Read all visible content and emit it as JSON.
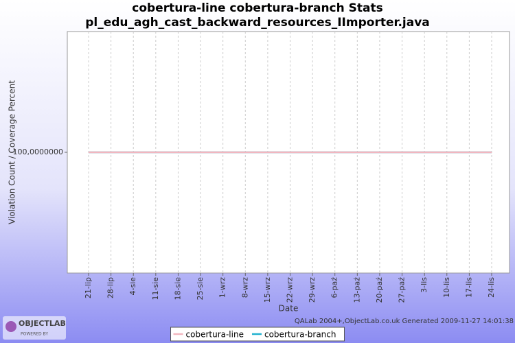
{
  "chart_data": {
    "type": "line",
    "title": [
      "cobertura-line cobertura-branch  Stats",
      "pl_edu_agh_cast_backward_resources_IImporter.java"
    ],
    "x_label": "Date",
    "y_label": "Violation Count / Coverage Percent",
    "categories": [
      "21-lip",
      "28-lip",
      "4-sie",
      "11-sie",
      "18-sie",
      "25-sie",
      "1-wrz",
      "8-wrz",
      "15-wrz",
      "22-wrz",
      "29-wrz",
      "6-paź",
      "13-paź",
      "20-paź",
      "27-paź",
      "3-lis",
      "10-lis",
      "17-lis",
      "24-lis"
    ],
    "series": [
      {
        "name": "cobertura-line",
        "color": "#f2b6bf",
        "values": [
          100,
          100,
          100,
          100,
          100,
          100,
          100,
          100,
          100,
          100,
          100,
          100,
          100,
          100,
          100,
          100,
          100,
          100,
          100
        ]
      },
      {
        "name": "cobertura-branch",
        "color": "#22b2cf",
        "values": [
          100,
          100,
          100,
          100,
          100,
          100,
          100,
          100,
          100,
          100,
          100,
          100,
          100,
          100,
          100,
          100,
          100,
          100,
          100
        ]
      }
    ],
    "ylim": [
      95,
      105
    ],
    "yticks": [
      {
        "value": 100,
        "label": "100,0000000"
      }
    ],
    "grid": true,
    "legend": "bottom",
    "footer": "QALab 2004+,ObjectLab.co.uk Generated 2009-11-27 14:01:38",
    "logo": [
      "OBJECTLAB",
      "POWERED BY"
    ]
  }
}
